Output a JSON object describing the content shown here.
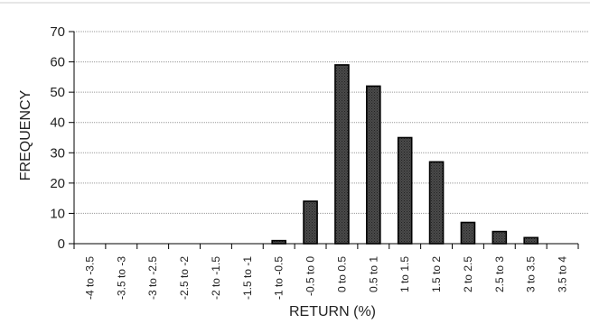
{
  "chart_data": {
    "type": "bar",
    "title": "",
    "xlabel": "RETURN (%)",
    "ylabel": "FREQUENCY",
    "ylim": [
      0,
      70
    ],
    "yticks": [
      0,
      10,
      20,
      30,
      40,
      50,
      60,
      70
    ],
    "grid": true,
    "categories": [
      "-4 to -3.5",
      "-3.5 to -3",
      "-3 to -2.5",
      "-2.5 to -2",
      "-2 to -1.5",
      "-1.5 to -1",
      "-1 to -0.5",
      "-0.5 to 0",
      "0 to 0.5",
      "0.5 to 1",
      "1 to 1.5",
      "1.5 to 2",
      "2 to 2.5",
      "2.5 to 3",
      "3 to 3.5",
      "3.5 to 4"
    ],
    "values": [
      0,
      0,
      0,
      0,
      0,
      0,
      1,
      14,
      59,
      52,
      35,
      27,
      7,
      4,
      2,
      0
    ],
    "colors": {
      "bar_fill": "#3a3a3a",
      "bar_stroke": "#000000",
      "grid": "#9a9a9a",
      "axis": "#000000"
    }
  }
}
